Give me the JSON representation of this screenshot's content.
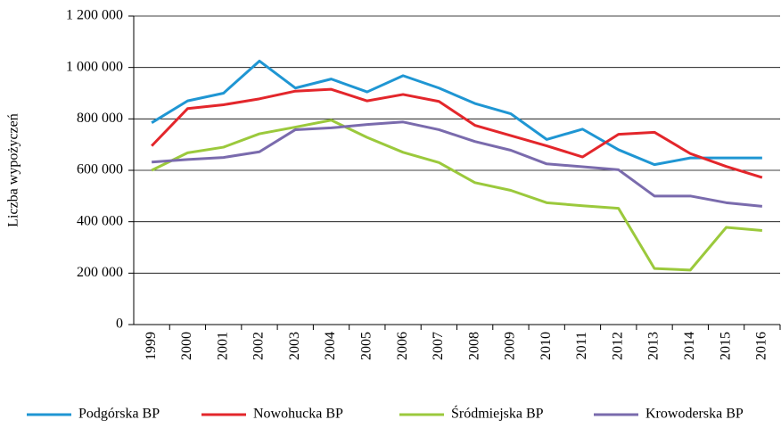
{
  "chart_data": {
    "type": "line",
    "y_label": "Liczba wypożyczeń",
    "categories": [
      "1999",
      "2000",
      "2001",
      "2002",
      "2003",
      "2004",
      "2005",
      "2006",
      "2007",
      "2008",
      "2009",
      "2010",
      "2011",
      "2012",
      "2013",
      "2014",
      "2015",
      "2016"
    ],
    "series": [
      {
        "name": "Podgórska BP",
        "color": "#1f96d3",
        "values": [
          785000,
          870000,
          900000,
          1025000,
          920000,
          955000,
          905000,
          968000,
          920000,
          860000,
          820000,
          720000,
          760000,
          680000,
          622000,
          648000,
          648000,
          648000
        ]
      },
      {
        "name": "Nowohucka BP",
        "color": "#e3262b",
        "values": [
          695000,
          840000,
          855000,
          878000,
          908000,
          915000,
          870000,
          895000,
          868000,
          775000,
          735000,
          695000,
          652000,
          740000,
          748000,
          665000,
          615000,
          572000
        ]
      },
      {
        "name": "Śródmiejska BP",
        "color": "#9bc93c",
        "values": [
          600000,
          668000,
          690000,
          742000,
          768000,
          795000,
          728000,
          670000,
          630000,
          552000,
          522000,
          474000,
          462000,
          452000,
          218000,
          212000,
          378000,
          366000
        ]
      },
      {
        "name": "Krowoderska BP",
        "color": "#7a6bad",
        "values": [
          632000,
          642000,
          650000,
          672000,
          758000,
          765000,
          778000,
          788000,
          758000,
          712000,
          678000,
          625000,
          614000,
          602000,
          500000,
          500000,
          474000,
          460000
        ]
      }
    ],
    "ylim": [
      0,
      1200000
    ],
    "yticks": [
      0,
      {
        "value": 200000,
        "label": "200 000"
      },
      {
        "value": 400000,
        "label": "400 000"
      },
      {
        "value": 600000,
        "label": "600 000"
      },
      {
        "value": 800000,
        "label": "800 000"
      },
      {
        "value": 1000000,
        "label": "1 000 000"
      },
      {
        "value": 1200000,
        "label": "1 200 000"
      }
    ],
    "grid": true,
    "legend": "bottom"
  }
}
